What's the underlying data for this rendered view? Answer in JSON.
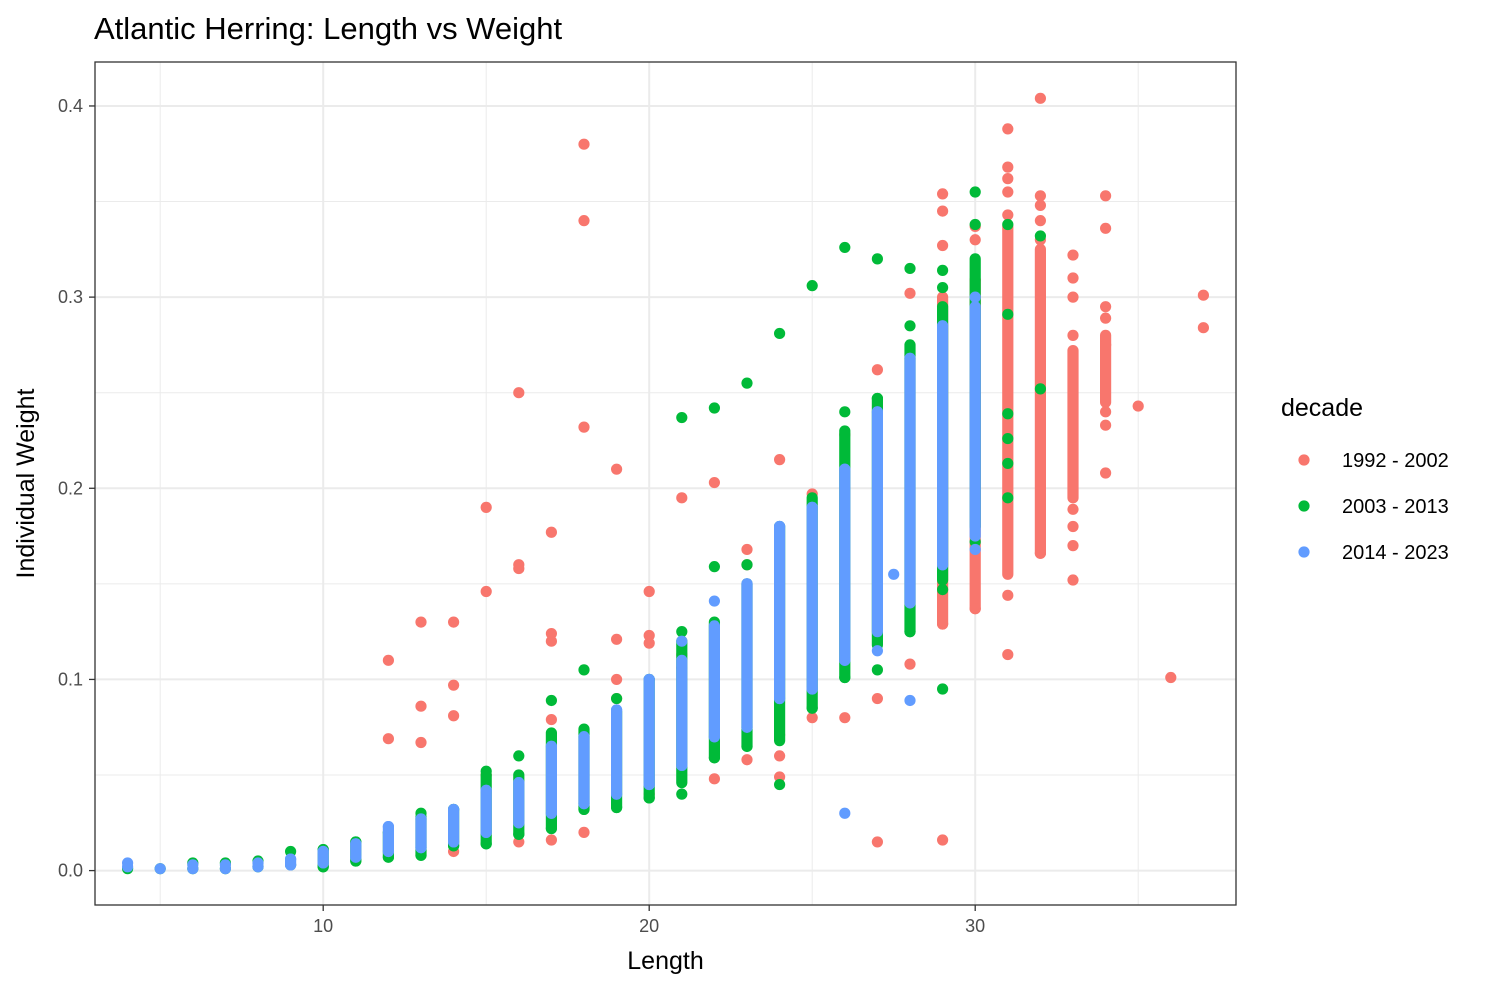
{
  "chart_data": {
    "type": "scatter",
    "title": "Atlantic Herring: Length vs Weight",
    "xlabel": "Length",
    "ylabel": "Individual Weight",
    "xlim": [
      3.0,
      38.0
    ],
    "ylim": [
      -0.018,
      0.423
    ],
    "x_ticks": [
      10,
      20,
      30
    ],
    "x_tick_labels": [
      "10",
      "20",
      "30"
    ],
    "x_minor_ticks": [
      5,
      15,
      25,
      35
    ],
    "y_ticks": [
      0.0,
      0.1,
      0.2,
      0.3,
      0.4
    ],
    "y_tick_labels": [
      "0.0",
      "0.1",
      "0.2",
      "0.3",
      "0.4"
    ],
    "y_minor_ticks": [
      0.05,
      0.15,
      0.25,
      0.35
    ],
    "grid": true,
    "legend": {
      "title": "decade",
      "position": "right"
    },
    "series": [
      {
        "name": "1992 - 2002",
        "color": "#F8766D",
        "columns": [
          {
            "x": 12,
            "y": [
              0.069,
              0.11
            ]
          },
          {
            "x": 13,
            "y": [
              0.067,
              0.086,
              0.13
            ]
          },
          {
            "x": 14,
            "y": [
              0.01,
              0.081,
              0.097,
              0.13
            ]
          },
          {
            "x": 15,
            "y": [
              0.05,
              0.146,
              0.19
            ]
          },
          {
            "x": 16,
            "y": [
              0.015,
              0.158,
              0.16,
              0.25
            ]
          },
          {
            "x": 17,
            "y": [
              0.016,
              0.079,
              0.12,
              0.124,
              0.177
            ]
          },
          {
            "x": 18,
            "y": [
              0.02,
              0.232,
              0.34,
              0.38
            ]
          },
          {
            "x": 19,
            "y": [
              0.09,
              0.1,
              0.121,
              0.21
            ]
          },
          {
            "x": 20,
            "y": [
              0.04,
              0.119,
              0.123,
              0.146
            ]
          },
          {
            "x": 21,
            "y": [
              0.106,
              0.113,
              0.195
            ]
          },
          {
            "x": 22,
            "y": [
              0.048,
              0.203
            ]
          },
          {
            "x": 23,
            "y": [
              0.058,
              0.16,
              0.168
            ]
          },
          {
            "x": 24,
            "y": [
              0.049,
              0.06,
              0.071,
              0.215
            ]
          },
          {
            "x": 25,
            "y": [
              0.08,
              0.197
            ]
          },
          {
            "x": 26,
            "y": [
              0.08,
              0.228
            ]
          },
          {
            "x": 27,
            "y": [
              0.015,
              0.09,
              0.262
            ]
          },
          {
            "x": 28,
            "y": [
              0.108,
              0.302
            ]
          },
          {
            "x": 29,
            "y": [
              0.016,
              0.129,
              0.327,
              0.345,
              0.354
            ],
            "range": [
              0.129,
              0.3
            ]
          },
          {
            "x": 30,
            "y": [
              0.137,
              0.309,
              0.33,
              0.337
            ],
            "range": [
              0.137,
              0.309
            ]
          },
          {
            "x": 31,
            "y": [
              0.113,
              0.144,
              0.343,
              0.355,
              0.362,
              0.368,
              0.388
            ],
            "range": [
              0.155,
              0.337
            ]
          },
          {
            "x": 32,
            "y": [
              0.166,
              0.33,
              0.34,
              0.348,
              0.353,
              0.404
            ],
            "range": [
              0.166,
              0.325
            ]
          },
          {
            "x": 33,
            "y": [
              0.152,
              0.17,
              0.18,
              0.189,
              0.28,
              0.3,
              0.31,
              0.322
            ],
            "range": [
              0.195,
              0.272
            ]
          },
          {
            "x": 34,
            "y": [
              0.208,
              0.233,
              0.24,
              0.275,
              0.289,
              0.295,
              0.336,
              0.353
            ],
            "range": [
              0.245,
              0.28
            ]
          },
          {
            "x": 35,
            "y": [
              0.243
            ]
          },
          {
            "x": 36,
            "y": [
              0.101
            ]
          },
          {
            "x": 37,
            "y": [
              0.284,
              0.301
            ]
          }
        ]
      },
      {
        "name": "2003 - 2013",
        "color": "#00BA38",
        "columns": [
          {
            "x": 4,
            "y": [
              0.001
            ]
          },
          {
            "x": 5,
            "y": [
              0.001
            ]
          },
          {
            "x": 6,
            "y": [
              0.001,
              0.004
            ]
          },
          {
            "x": 7,
            "y": [
              0.001,
              0.004
            ]
          },
          {
            "x": 8,
            "y": [
              0.002,
              0.005
            ]
          },
          {
            "x": 9,
            "y": [
              0.003,
              0.01
            ]
          },
          {
            "x": 10,
            "y": [
              0.002,
              0.011
            ],
            "range": [
              0.002,
              0.011
            ]
          },
          {
            "x": 11,
            "y": [
              0.005,
              0.015
            ],
            "range": [
              0.005,
              0.015
            ]
          },
          {
            "x": 12,
            "y": [
              0.007,
              0.02
            ],
            "range": [
              0.007,
              0.02
            ]
          },
          {
            "x": 13,
            "y": [
              0.008,
              0.03
            ],
            "range": [
              0.008,
              0.028
            ]
          },
          {
            "x": 14,
            "y": [
              0.013,
              0.032
            ],
            "range": [
              0.013,
              0.032
            ]
          },
          {
            "x": 15,
            "y": [
              0.014,
              0.052
            ],
            "range": [
              0.014,
              0.05
            ]
          },
          {
            "x": 16,
            "y": [
              0.019,
              0.06
            ],
            "range": [
              0.019,
              0.05
            ]
          },
          {
            "x": 17,
            "y": [
              0.022,
              0.089
            ],
            "range": [
              0.022,
              0.072
            ]
          },
          {
            "x": 18,
            "y": [
              0.032,
              0.105
            ],
            "range": [
              0.032,
              0.074
            ]
          },
          {
            "x": 19,
            "y": [
              0.033,
              0.09
            ],
            "range": [
              0.033,
              0.083
            ]
          },
          {
            "x": 20,
            "y": [
              0.038,
              0.1
            ],
            "range": [
              0.038,
              0.1
            ]
          },
          {
            "x": 21,
            "y": [
              0.04,
              0.125,
              0.237
            ],
            "range": [
              0.046,
              0.12
            ]
          },
          {
            "x": 22,
            "y": [
              0.059,
              0.159,
              0.242
            ],
            "range": [
              0.059,
              0.13
            ]
          },
          {
            "x": 23,
            "y": [
              0.065,
              0.16,
              0.255
            ],
            "range": [
              0.065,
              0.15
            ]
          },
          {
            "x": 24,
            "y": [
              0.045,
              0.281
            ],
            "range": [
              0.068,
              0.18
            ]
          },
          {
            "x": 25,
            "y": [
              0.085,
              0.306
            ],
            "range": [
              0.085,
              0.195
            ]
          },
          {
            "x": 26,
            "y": [
              0.101,
              0.24,
              0.326
            ],
            "range": [
              0.101,
              0.23
            ]
          },
          {
            "x": 27,
            "y": [
              0.105,
              0.247,
              0.32
            ],
            "range": [
              0.118,
              0.247
            ]
          },
          {
            "x": 28,
            "y": [
              0.125,
              0.285,
              0.315
            ],
            "range": [
              0.125,
              0.275
            ]
          },
          {
            "x": 29,
            "y": [
              0.095,
              0.147,
              0.314,
              0.305
            ],
            "range": [
              0.152,
              0.295
            ]
          },
          {
            "x": 30,
            "y": [
              0.172,
              0.355,
              0.338
            ],
            "range": [
              0.18,
              0.32
            ]
          },
          {
            "x": 31,
            "y": [
              0.195,
              0.213,
              0.226,
              0.239,
              0.291,
              0.338
            ]
          },
          {
            "x": 32,
            "y": [
              0.252,
              0.332
            ]
          }
        ]
      },
      {
        "name": "2014 - 2023",
        "color": "#619CFF",
        "columns": [
          {
            "x": 4,
            "y": [
              0.002,
              0.004
            ]
          },
          {
            "x": 5,
            "y": [
              0.001
            ]
          },
          {
            "x": 6,
            "y": [
              0.001,
              0.003
            ]
          },
          {
            "x": 7,
            "y": [
              0.001,
              0.003
            ]
          },
          {
            "x": 8,
            "y": [
              0.002,
              0.004
            ]
          },
          {
            "x": 9,
            "y": [
              0.003,
              0.006
            ],
            "range": [
              0.003,
              0.006
            ]
          },
          {
            "x": 10,
            "y": [
              0.004,
              0.01
            ],
            "range": [
              0.004,
              0.01
            ]
          },
          {
            "x": 11,
            "y": [
              0.007,
              0.014
            ],
            "range": [
              0.007,
              0.014
            ]
          },
          {
            "x": 12,
            "y": [
              0.01,
              0.023
            ],
            "range": [
              0.01,
              0.023
            ]
          },
          {
            "x": 13,
            "y": [
              0.012,
              0.027
            ],
            "range": [
              0.012,
              0.027
            ]
          },
          {
            "x": 14,
            "y": [
              0.015,
              0.032
            ],
            "range": [
              0.015,
              0.032
            ]
          },
          {
            "x": 15,
            "y": [
              0.02,
              0.042
            ],
            "range": [
              0.02,
              0.042
            ]
          },
          {
            "x": 16,
            "y": [
              0.025,
              0.046
            ],
            "range": [
              0.025,
              0.046
            ]
          },
          {
            "x": 17,
            "y": [
              0.03,
              0.065
            ],
            "range": [
              0.03,
              0.065
            ]
          },
          {
            "x": 18,
            "y": [
              0.035,
              0.07
            ],
            "range": [
              0.035,
              0.07
            ]
          },
          {
            "x": 19,
            "y": [
              0.04,
              0.084
            ],
            "range": [
              0.04,
              0.084
            ]
          },
          {
            "x": 20,
            "y": [
              0.045,
              0.1
            ],
            "range": [
              0.045,
              0.1
            ]
          },
          {
            "x": 21,
            "y": [
              0.055,
              0.12
            ],
            "range": [
              0.055,
              0.11
            ]
          },
          {
            "x": 22,
            "y": [
              0.07,
              0.141
            ],
            "range": [
              0.07,
              0.128
            ]
          },
          {
            "x": 23,
            "y": [
              0.075,
              0.15
            ],
            "range": [
              0.075,
              0.15
            ]
          },
          {
            "x": 24,
            "y": [
              0.09,
              0.18
            ],
            "range": [
              0.09,
              0.18
            ]
          },
          {
            "x": 25,
            "y": [
              0.095,
              0.19
            ],
            "range": [
              0.095,
              0.19
            ]
          },
          {
            "x": 26,
            "y": [
              0.03,
              0.11,
              0.21
            ],
            "range": [
              0.11,
              0.21
            ]
          },
          {
            "x": 27,
            "y": [
              0.115,
              0.24
            ],
            "range": [
              0.125,
              0.24
            ]
          },
          {
            "x": 28,
            "y": [
              0.089,
              0.268
            ],
            "range": [
              0.14,
              0.268
            ]
          },
          {
            "x": 29,
            "y": [
              0.16,
              0.285
            ],
            "range": [
              0.16,
              0.285
            ]
          },
          {
            "x": 30,
            "y": [
              0.168,
              0.3
            ],
            "range": [
              0.175,
              0.295
            ]
          },
          {
            "x": 27.5,
            "y": [
              0.155
            ]
          }
        ]
      }
    ]
  }
}
